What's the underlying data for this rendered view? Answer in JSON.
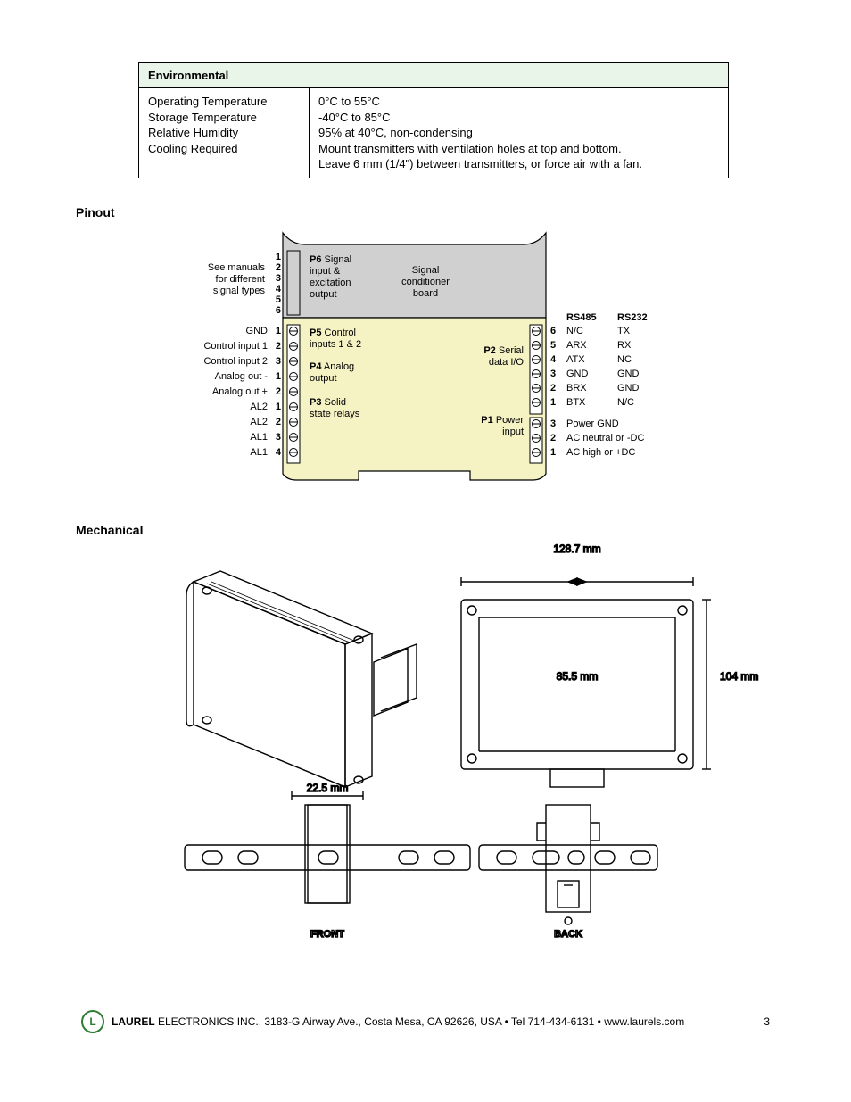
{
  "env": {
    "header": "Environmental",
    "labels": [
      "Operating Temperature",
      "Storage Temperature",
      "Relative Humidity",
      "Cooling Required"
    ],
    "values": [
      "0°C to 55°C",
      "-40°C to 85°C",
      "95% at 40°C, non-condensing",
      "Mount transmitters with ventilation holes at top and bottom.",
      "Leave 6 mm (1/4\") between transmitters, or force air with a fan."
    ]
  },
  "sections": {
    "pinout": "Pinout",
    "mechanical": "Mechanical"
  },
  "pinout": {
    "top_note": [
      "See manuals",
      "for different",
      "signal types"
    ],
    "p6_nums": [
      "1",
      "2",
      "3",
      "4",
      "5",
      "6"
    ],
    "p6_title": "P6",
    "p6_desc": [
      "Signal",
      "input &",
      "excitation",
      "output"
    ],
    "sig_board": [
      "Signal",
      "conditioner",
      "board"
    ],
    "left_labels": [
      {
        "n": "1",
        "t": "GND"
      },
      {
        "n": "2",
        "t": "Control input 1"
      },
      {
        "n": "3",
        "t": "Control input 2"
      },
      {
        "n": "1",
        "t": "Analog out -"
      },
      {
        "n": "2",
        "t": "Analog out +"
      },
      {
        "n": "1",
        "t": "AL2"
      },
      {
        "n": "2",
        "t": "AL2"
      },
      {
        "n": "3",
        "t": "AL1"
      },
      {
        "n": "4",
        "t": "AL1"
      }
    ],
    "mid_blocks": [
      {
        "b": "P5",
        "lines": [
          "Control",
          "inputs 1 & 2"
        ]
      },
      {
        "b": "P4",
        "lines": [
          "Analog",
          "output"
        ]
      },
      {
        "b": "P3",
        "lines": [
          "Solid",
          "state relays"
        ]
      }
    ],
    "right_mid": [
      {
        "b": "P2",
        "lines": [
          "Serial",
          "data I/O"
        ]
      },
      {
        "b": "P1",
        "lines": [
          "Power",
          "input"
        ]
      }
    ],
    "rs_h1": "RS485",
    "rs_h2": "RS232",
    "serial_rows": [
      {
        "n": "6",
        "a": "N/C",
        "b": "TX"
      },
      {
        "n": "5",
        "a": "ARX",
        "b": "RX"
      },
      {
        "n": "4",
        "a": "ATX",
        "b": "NC"
      },
      {
        "n": "3",
        "a": "GND",
        "b": "GND"
      },
      {
        "n": "2",
        "a": "BRX",
        "b": "GND"
      },
      {
        "n": "1",
        "a": "BTX",
        "b": "N/C"
      }
    ],
    "power_rows": [
      {
        "n": "3",
        "t": "Power GND"
      },
      {
        "n": "2",
        "t": "AC neutral or -DC"
      },
      {
        "n": "1",
        "t": "AC high or +DC"
      }
    ],
    "colors": {
      "top_fill": "#d0d0d0",
      "body_fill": "#f5f2c4",
      "stroke": "#000000"
    }
  },
  "mech": {
    "d1": "128.7 mm",
    "d2": "104 mm",
    "d3": "85.5 mm",
    "d4": "22.5 mm",
    "front": "FRONT",
    "back": "BACK"
  },
  "footer": {
    "company": "LAUREL",
    "rest": " ELECTRONICS INC., 3183-G Airway Ave., Costa Mesa, CA 92626, USA • Tel 714-434-6131 • www.laurels.com",
    "page": "3"
  }
}
